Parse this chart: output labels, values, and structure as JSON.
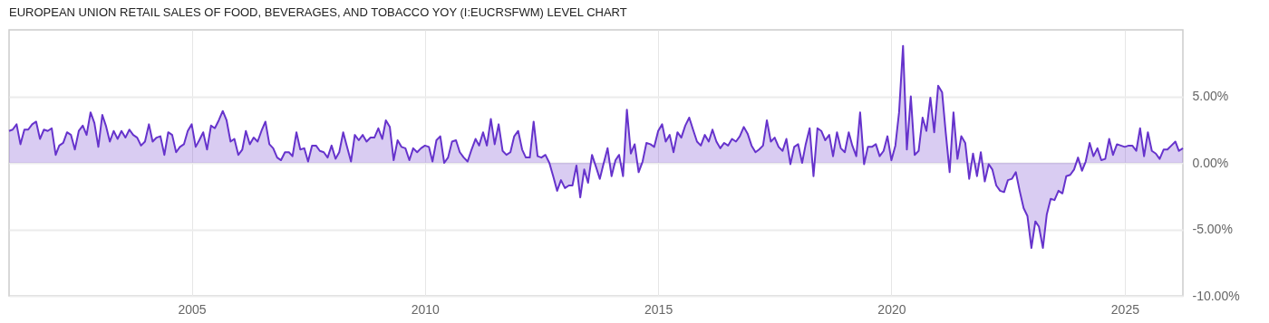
{
  "chart_data": {
    "type": "area",
    "title": "EUROPEAN UNION RETAIL SALES OF FOOD, BEVERAGES, AND TOBACCO YOY (I:EUCRSFWM) LEVEL CHART",
    "x": [
      "2001-02",
      "2001-03",
      "2001-04",
      "2001-05",
      "2001-06",
      "2001-07",
      "2001-08",
      "2001-09",
      "2001-10",
      "2001-11",
      "2001-12",
      "2002-01",
      "2002-02",
      "2002-03",
      "2002-04",
      "2002-05",
      "2002-06",
      "2002-07",
      "2002-08",
      "2002-09",
      "2002-10",
      "2002-11",
      "2002-12",
      "2003-01",
      "2003-02",
      "2003-03",
      "2003-04",
      "2003-05",
      "2003-06",
      "2003-07",
      "2003-08",
      "2003-09",
      "2003-10",
      "2003-11",
      "2003-12",
      "2004-01",
      "2004-02",
      "2004-03",
      "2004-04",
      "2004-05",
      "2004-06",
      "2004-07",
      "2004-08",
      "2004-09",
      "2004-10",
      "2004-11",
      "2004-12",
      "2005-01",
      "2005-02",
      "2005-03",
      "2005-04",
      "2005-05",
      "2005-06",
      "2005-07",
      "2005-08",
      "2005-09",
      "2005-10",
      "2005-11",
      "2005-12",
      "2006-01",
      "2006-02",
      "2006-03",
      "2006-04",
      "2006-05",
      "2006-06",
      "2006-07",
      "2006-08",
      "2006-09",
      "2006-10",
      "2006-11",
      "2006-12",
      "2007-01",
      "2007-02",
      "2007-03",
      "2007-04",
      "2007-05",
      "2007-06",
      "2007-07",
      "2007-08",
      "2007-09",
      "2007-10",
      "2007-11",
      "2007-12",
      "2008-01",
      "2008-02",
      "2008-03",
      "2008-04",
      "2008-05",
      "2008-06",
      "2008-07",
      "2008-08",
      "2008-09",
      "2008-10",
      "2008-11",
      "2008-12",
      "2009-01",
      "2009-02",
      "2009-03",
      "2009-04",
      "2009-05",
      "2009-06",
      "2009-07",
      "2009-08",
      "2009-09",
      "2009-10",
      "2009-11",
      "2009-12",
      "2010-01",
      "2010-02",
      "2010-03",
      "2010-04",
      "2010-05",
      "2010-06",
      "2010-07",
      "2010-08",
      "2010-09",
      "2010-10",
      "2010-11",
      "2010-12",
      "2011-01",
      "2011-02",
      "2011-03",
      "2011-04",
      "2011-05",
      "2011-06",
      "2011-07",
      "2011-08",
      "2011-09",
      "2011-10",
      "2011-11",
      "2011-12",
      "2012-01",
      "2012-02",
      "2012-03",
      "2012-04",
      "2012-05",
      "2012-06",
      "2012-07",
      "2012-08",
      "2012-09",
      "2012-10",
      "2012-11",
      "2012-12",
      "2013-01",
      "2013-02",
      "2013-03",
      "2013-04",
      "2013-05",
      "2013-06",
      "2013-07",
      "2013-08",
      "2013-09",
      "2013-10",
      "2013-11",
      "2013-12",
      "2014-01",
      "2014-02",
      "2014-03",
      "2014-04",
      "2014-05",
      "2014-06",
      "2014-07",
      "2014-08",
      "2014-09",
      "2014-10",
      "2014-11",
      "2014-12",
      "2015-01",
      "2015-02",
      "2015-03",
      "2015-04",
      "2015-05",
      "2015-06",
      "2015-07",
      "2015-08",
      "2015-09",
      "2015-10",
      "2015-11",
      "2015-12",
      "2016-01",
      "2016-02",
      "2016-03",
      "2016-04",
      "2016-05",
      "2016-06",
      "2016-07",
      "2016-08",
      "2016-09",
      "2016-10",
      "2016-11",
      "2016-12",
      "2017-01",
      "2017-02",
      "2017-03",
      "2017-04",
      "2017-05",
      "2017-06",
      "2017-07",
      "2017-08",
      "2017-09",
      "2017-10",
      "2017-11",
      "2017-12",
      "2018-01",
      "2018-02",
      "2018-03",
      "2018-04",
      "2018-05",
      "2018-06",
      "2018-07",
      "2018-08",
      "2018-09",
      "2018-10",
      "2018-11",
      "2018-12",
      "2019-01",
      "2019-02",
      "2019-03",
      "2019-04",
      "2019-05",
      "2019-06",
      "2019-07",
      "2019-08",
      "2019-09",
      "2019-10",
      "2019-11",
      "2019-12",
      "2020-01",
      "2020-02",
      "2020-03",
      "2020-04",
      "2020-05",
      "2020-06",
      "2020-07",
      "2020-08",
      "2020-09",
      "2020-10",
      "2020-11",
      "2020-12",
      "2021-01",
      "2021-02",
      "2021-03",
      "2021-04",
      "2021-05",
      "2021-06",
      "2021-07",
      "2021-08",
      "2021-09",
      "2021-10",
      "2021-11",
      "2021-12",
      "2022-01",
      "2022-02",
      "2022-03",
      "2022-04",
      "2022-05",
      "2022-06",
      "2022-07",
      "2022-08",
      "2022-09",
      "2022-10",
      "2022-11",
      "2022-12",
      "2023-01",
      "2023-02",
      "2023-03",
      "2023-04",
      "2023-05",
      "2023-06",
      "2023-07",
      "2023-08",
      "2023-09",
      "2023-10",
      "2023-11",
      "2023-12",
      "2024-01",
      "2024-02",
      "2024-03",
      "2024-04",
      "2024-05",
      "2024-06",
      "2024-07",
      "2024-08",
      "2024-09",
      "2024-10",
      "2024-11",
      "2024-12",
      "2025-01",
      "2025-02",
      "2025-03",
      "2025-04",
      "2025-05",
      "2025-06",
      "2025-07",
      "2025-08",
      "2025-09",
      "2025-10",
      "2025-11",
      "2025-12",
      "2026-01",
      "2026-02",
      "2026-03",
      "2026-04"
    ],
    "series": [
      {
        "color": "#6633cc",
        "values": [
          2.4,
          2.5,
          2.9,
          1.4,
          2.5,
          2.5,
          2.9,
          3.1,
          1.8,
          2.5,
          2.4,
          2.6,
          0.6,
          1.3,
          1.5,
          2.3,
          2.1,
          1.0,
          2.4,
          2.8,
          2.1,
          3.8,
          3.0,
          1.2,
          3.6,
          2.8,
          1.6,
          2.4,
          1.8,
          2.4,
          1.9,
          2.5,
          2.1,
          1.9,
          1.3,
          1.6,
          2.9,
          1.6,
          1.9,
          2.0,
          0.6,
          2.3,
          2.1,
          0.8,
          1.2,
          1.4,
          2.4,
          2.9,
          1.2,
          1.7,
          2.3,
          1.0,
          2.8,
          2.6,
          3.2,
          3.9,
          3.2,
          1.6,
          1.8,
          0.6,
          1.0,
          2.4,
          1.4,
          1.9,
          1.6,
          2.4,
          3.1,
          1.4,
          1.1,
          0.4,
          0.2,
          0.8,
          0.8,
          0.5,
          2.3,
          1.0,
          1.1,
          0.1,
          1.3,
          1.3,
          0.9,
          0.8,
          0.4,
          1.3,
          0.3,
          0.8,
          2.3,
          1.2,
          0.1,
          2.1,
          1.7,
          2.1,
          1.6,
          1.9,
          1.9,
          2.6,
          1.8,
          3.2,
          2.7,
          0.2,
          1.7,
          1.2,
          1.1,
          0.2,
          1.1,
          0.8,
          1.1,
          1.3,
          1.2,
          0.1,
          1.7,
          2.0,
          0.0,
          0.4,
          1.6,
          1.7,
          0.8,
          0.4,
          0.1,
          1.0,
          1.8,
          1.3,
          2.3,
          1.3,
          3.3,
          1.4,
          2.9,
          0.9,
          0.6,
          0.8,
          2.0,
          2.4,
          1.0,
          0.4,
          0.4,
          3.1,
          0.5,
          0.4,
          0.6,
          0.0,
          -1.0,
          -2.1,
          -1.3,
          -1.9,
          -1.7,
          -1.7,
          -0.2,
          -2.6,
          -0.5,
          -1.5,
          0.6,
          -0.3,
          -1.2,
          0.0,
          1.1,
          -1.0,
          0.2,
          0.6,
          -1.0,
          4.0,
          0.7,
          1.4,
          -0.7,
          0.1,
          1.5,
          1.4,
          1.2,
          2.4,
          2.9,
          1.6,
          2.1,
          0.8,
          2.3,
          1.9,
          2.8,
          3.4,
          2.5,
          1.6,
          1.3,
          2.1,
          1.6,
          2.5,
          1.6,
          1.1,
          1.5,
          1.3,
          1.8,
          1.6,
          2.0,
          2.7,
          2.2,
          1.3,
          0.8,
          1.0,
          1.3,
          3.2,
          1.6,
          1.9,
          1.2,
          0.9,
          1.8,
          -0.1,
          1.2,
          1.4,
          0.0,
          1.4,
          2.6,
          -1.0,
          2.6,
          2.4,
          1.7,
          2.1,
          0.5,
          2.3,
          1.1,
          0.8,
          2.3,
          1.3,
          0.5,
          3.8,
          -0.1,
          1.2,
          1.2,
          1.4,
          0.5,
          0.9,
          2.0,
          0.2,
          1.3,
          3.8,
          8.8,
          1.0,
          5.0,
          0.6,
          0.9,
          3.4,
          2.4,
          4.9,
          2.3,
          5.8,
          5.3,
          2.3,
          -0.7,
          3.8,
          0.3,
          2.0,
          1.5,
          -1.2,
          0.7,
          -1.0,
          0.8,
          -1.4,
          -0.1,
          -0.5,
          -1.7,
          -2.1,
          -2.2,
          -1.3,
          -1.2,
          -0.7,
          -2.1,
          -3.4,
          -4.0,
          -6.4,
          -4.4,
          -4.8,
          -6.4,
          -3.9,
          -2.7,
          -2.8,
          -2.1,
          -2.3,
          -1.0,
          -0.9,
          -0.5,
          0.4,
          -0.6,
          0.1,
          1.5,
          0.5,
          1.1,
          0.2,
          0.3,
          1.8,
          0.6,
          1.4,
          1.3,
          1.2,
          1.3,
          1.3,
          0.9,
          2.6,
          0.5,
          2.3,
          0.9,
          0.7,
          0.3,
          1.0,
          1.0,
          1.3,
          1.6,
          0.9,
          1.1
        ]
      }
    ],
    "xlim": [
      "2001-02",
      "2026-04"
    ],
    "xticks": [
      "2005",
      "2010",
      "2015",
      "2020",
      "2025"
    ],
    "ylim": [
      -10,
      10
    ],
    "yticks": [
      {
        "value": 5,
        "label": "5.00%"
      },
      {
        "value": 0,
        "label": "0.00%"
      },
      {
        "value": -5,
        "label": "-5.00%"
      },
      {
        "value": -10,
        "label": "-10.00%"
      }
    ],
    "grid": true
  }
}
